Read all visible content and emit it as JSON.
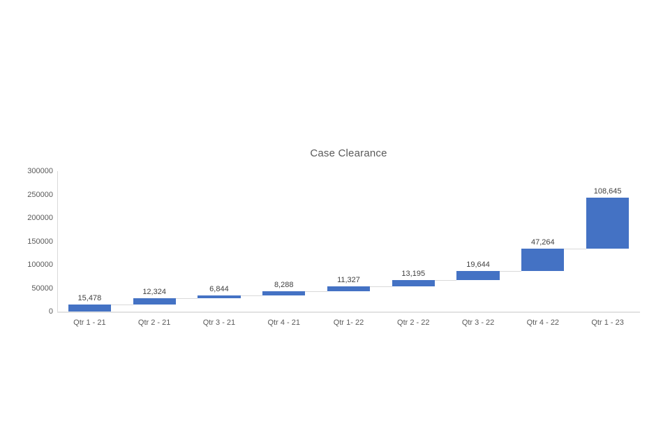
{
  "chart_data": {
    "type": "bar",
    "subtype": "waterfall",
    "title": "Case Clearance",
    "categories": [
      "Qtr 1 - 21",
      "Qtr 2 - 21",
      "Qtr 3 - 21",
      "Qtr 4 - 21",
      "Qtr 1- 22",
      "Qtr 2 - 22",
      "Qtr 3 - 22",
      "Qtr 4 - 22",
      "Qtr 1 - 23"
    ],
    "values": [
      15478,
      12324,
      6844,
      8288,
      11327,
      13195,
      19644,
      47264,
      108645
    ],
    "value_labels": [
      "15,478",
      "12,324",
      "6,844",
      "8,288",
      "11,327",
      "13,195",
      "19,644",
      "47,264",
      "108,645"
    ],
    "cumulative": [
      15478,
      27802,
      34646,
      42934,
      54261,
      67456,
      87100,
      134364,
      243009
    ],
    "xlabel": "",
    "ylabel": "",
    "ylim": [
      0,
      300000
    ],
    "y_tick_step": 50000,
    "y_tick_labels": [
      "0",
      "50000",
      "100000",
      "150000",
      "200000",
      "250000",
      "300000"
    ],
    "grid": "off",
    "legend": "none",
    "data_labels": "above bars",
    "connectors": "between consecutive bars",
    "colors": {
      "bar": "#4472c4",
      "axis_line": "#d9d9d9",
      "connector": "#d9d9d9",
      "title_text": "#595959",
      "tick_text": "#595959",
      "data_label_text": "#404040",
      "background": "#ffffff"
    }
  }
}
